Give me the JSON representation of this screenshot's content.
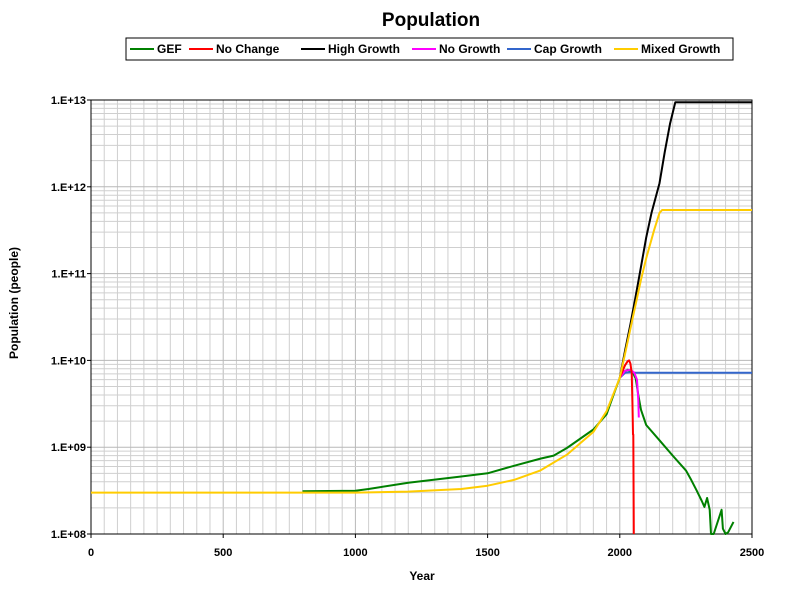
{
  "chart_data": {
    "type": "line",
    "title": "Population",
    "xlabel": "Year",
    "ylabel": "Population (people)",
    "xlim": [
      0,
      2500
    ],
    "ylim": [
      100000000.0,
      10000000000000.0
    ],
    "y_scale": "log",
    "grid": true,
    "legend": "top-center",
    "x_ticks": [
      0,
      500,
      1000,
      1500,
      2000,
      2500
    ],
    "x_tick_labels": [
      "0",
      "500",
      "1000",
      "1500",
      "2000",
      "2500"
    ],
    "y_ticks": [
      100000000.0,
      1000000000.0,
      10000000000.0,
      100000000000.0,
      1000000000000.0,
      10000000000000.0
    ],
    "y_tick_labels": [
      "1.E+08",
      "1.E+09",
      "1.E+10",
      "1.E+11",
      "1.E+12",
      "1.E+13"
    ],
    "series": [
      {
        "name": "GEF",
        "color": "#008000",
        "points": [
          [
            800,
            310000000.0
          ],
          [
            1000,
            315000000.0
          ],
          [
            1050,
            330000000.0
          ],
          [
            1200,
            390000000.0
          ],
          [
            1400,
            460000000.0
          ],
          [
            1500,
            500000000.0
          ],
          [
            1600,
            610000000.0
          ],
          [
            1700,
            740000000.0
          ],
          [
            1750,
            800000000.0
          ],
          [
            1800,
            980000000.0
          ],
          [
            1900,
            1600000000.0
          ],
          [
            1950,
            2400000000.0
          ],
          [
            1980,
            4300000000.0
          ],
          [
            2000,
            6300000000.0
          ],
          [
            2010,
            7300000000.0
          ],
          [
            2030,
            7800000000.0
          ],
          [
            2050,
            7200000000.0
          ],
          [
            2060,
            6200000000.0
          ],
          [
            2070,
            4000000000.0
          ],
          [
            2080,
            2700000000.0
          ],
          [
            2100,
            1800000000.0
          ],
          [
            2150,
            1200000000.0
          ],
          [
            2200,
            800000000.0
          ],
          [
            2250,
            540000000.0
          ],
          [
            2270,
            420000000.0
          ],
          [
            2290,
            320000000.0
          ],
          [
            2310,
            240000000.0
          ],
          [
            2320,
            205000000.0
          ],
          [
            2330,
            260000000.0
          ],
          [
            2340,
            190000000.0
          ],
          [
            2345,
            100000000.0
          ],
          [
            2355,
            100000000.0
          ],
          [
            2385,
            190000000.0
          ],
          [
            2390,
            115000000.0
          ],
          [
            2400,
            100000000.0
          ],
          [
            2410,
            105000000.0
          ],
          [
            2430,
            138000000.0
          ]
        ]
      },
      {
        "name": "No Change",
        "color": "#ff0000",
        "points": [
          [
            2000,
            6300000000.0
          ],
          [
            2010,
            7500000000.0
          ],
          [
            2020,
            8800000000.0
          ],
          [
            2030,
            9800000000.0
          ],
          [
            2035,
            10000000000.0
          ],
          [
            2040,
            9200000000.0
          ],
          [
            2045,
            7200000000.0
          ],
          [
            2048,
            3000000000.0
          ],
          [
            2050,
            1400000000.0
          ],
          [
            2051,
            1400000000.0
          ],
          [
            2053,
            100000000.0
          ]
        ]
      },
      {
        "name": "High Growth",
        "color": "#000000",
        "points": [
          [
            2000,
            6300000000.0
          ],
          [
            2020,
            13000000000.0
          ],
          [
            2040,
            26000000000.0
          ],
          [
            2060,
            55000000000.0
          ],
          [
            2080,
            120000000000.0
          ],
          [
            2100,
            260000000000.0
          ],
          [
            2120,
            500000000000.0
          ],
          [
            2150,
            1100000000000.0
          ],
          [
            2170,
            2500000000000.0
          ],
          [
            2190,
            5300000000000.0
          ],
          [
            2210,
            9400000000000.0
          ],
          [
            2220,
            9400000000000.0
          ],
          [
            2500,
            9400000000000.0
          ]
        ]
      },
      {
        "name": "No Growth",
        "color": "#ff00ff",
        "points": [
          [
            2000,
            6300000000.0
          ],
          [
            2020,
            7600000000.0
          ],
          [
            2040,
            7800000000.0
          ],
          [
            2055,
            7200000000.0
          ],
          [
            2065,
            6000000000.0
          ],
          [
            2070,
            3500000000.0
          ],
          [
            2072,
            2200000000.0
          ]
        ]
      },
      {
        "name": "Cap Growth",
        "color": "#3366cc",
        "points": [
          [
            2000,
            6300000000.0
          ],
          [
            2020,
            7200000000.0
          ],
          [
            2040,
            7300000000.0
          ],
          [
            2060,
            7200000000.0
          ],
          [
            2500,
            7200000000.0
          ]
        ]
      },
      {
        "name": "Mixed Growth",
        "color": "#ffcc00",
        "points": [
          [
            0,
            300000000.0
          ],
          [
            500,
            300000000.0
          ],
          [
            1000,
            300000000.0
          ],
          [
            1200,
            308000000.0
          ],
          [
            1400,
            330000000.0
          ],
          [
            1500,
            360000000.0
          ],
          [
            1600,
            420000000.0
          ],
          [
            1700,
            540000000.0
          ],
          [
            1800,
            820000000.0
          ],
          [
            1900,
            1500000000.0
          ],
          [
            1950,
            2600000000.0
          ],
          [
            2000,
            6300000000.0
          ],
          [
            2020,
            12000000000.0
          ],
          [
            2050,
            32000000000.0
          ],
          [
            2080,
            85000000000.0
          ],
          [
            2100,
            150000000000.0
          ],
          [
            2130,
            320000000000.0
          ],
          [
            2150,
            500000000000.0
          ],
          [
            2160,
            540000000000.0
          ],
          [
            2500,
            540000000000.0
          ]
        ]
      }
    ]
  }
}
